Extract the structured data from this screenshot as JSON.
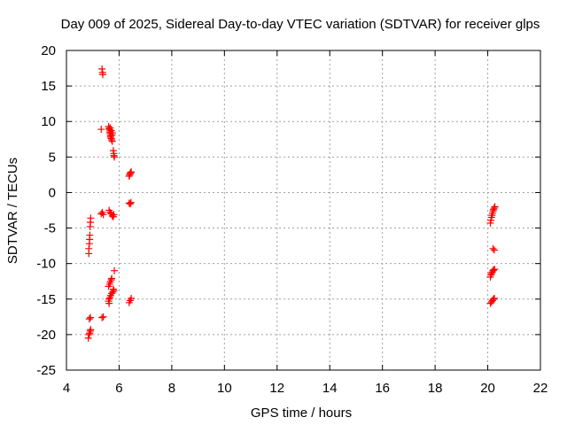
{
  "chart_data": {
    "type": "scatter",
    "title": "Day 009 of 2025, Sidereal Day-to-day VTEC variation (SDTVAR) for receiver glps",
    "xlabel": "GPS time / hours",
    "ylabel": "SDTVAR / TECUs",
    "xlim": [
      4,
      22
    ],
    "ylim": [
      -25,
      20
    ],
    "xticks": [
      "4",
      "6",
      "8",
      "10",
      "12",
      "14",
      "16",
      "18",
      "20",
      "22"
    ],
    "yticks": [
      "20",
      "15",
      "10",
      "5",
      "0",
      "-5",
      "-10",
      "-15",
      "-20",
      "-25"
    ],
    "grid": true,
    "marker": "plus",
    "color": "#ff0000",
    "series": [
      {
        "name": "SDTVAR",
        "points": [
          [
            4.85,
            -8.6
          ],
          [
            4.85,
            -7.9
          ],
          [
            4.87,
            -7.2
          ],
          [
            4.88,
            -6.6
          ],
          [
            4.89,
            -6.0
          ],
          [
            4.9,
            -4.8
          ],
          [
            4.91,
            -4.2
          ],
          [
            4.92,
            -3.6
          ],
          [
            4.83,
            -20.5
          ],
          [
            4.86,
            -20.0
          ],
          [
            4.88,
            -19.8
          ],
          [
            4.9,
            -19.5
          ],
          [
            4.92,
            -19.3
          ],
          [
            4.87,
            -17.8
          ],
          [
            4.91,
            -17.6
          ],
          [
            5.35,
            17.4
          ],
          [
            5.37,
            16.9
          ],
          [
            5.38,
            16.6
          ],
          [
            5.32,
            8.9
          ],
          [
            5.6,
            9.3
          ],
          [
            5.62,
            9.0
          ],
          [
            5.64,
            8.8
          ],
          [
            5.65,
            8.5
          ],
          [
            5.66,
            8.3
          ],
          [
            5.67,
            8.0
          ],
          [
            5.68,
            7.8
          ],
          [
            5.7,
            7.6
          ],
          [
            5.72,
            7.4
          ],
          [
            5.74,
            7.2
          ],
          [
            5.66,
            9.1
          ],
          [
            5.7,
            8.7
          ],
          [
            5.75,
            8.4
          ],
          [
            5.73,
            8.1
          ],
          [
            5.78,
            5.9
          ],
          [
            5.8,
            5.5
          ],
          [
            5.8,
            5.2
          ],
          [
            5.82,
            5.0
          ],
          [
            6.38,
            2.3
          ],
          [
            6.4,
            2.5
          ],
          [
            6.42,
            2.7
          ],
          [
            6.44,
            2.8
          ],
          [
            6.46,
            2.9
          ],
          [
            6.38,
            -1.5
          ],
          [
            6.42,
            -1.6
          ],
          [
            6.45,
            -1.4
          ],
          [
            5.32,
            -3.0
          ],
          [
            5.36,
            -2.8
          ],
          [
            5.4,
            -3.1
          ],
          [
            5.62,
            -2.5
          ],
          [
            5.66,
            -2.8
          ],
          [
            5.7,
            -3.0
          ],
          [
            5.74,
            -3.3
          ],
          [
            5.78,
            -3.4
          ],
          [
            5.8,
            -3.1
          ],
          [
            5.82,
            -11.0
          ],
          [
            5.6,
            -13.2
          ],
          [
            5.64,
            -12.9
          ],
          [
            5.66,
            -12.6
          ],
          [
            5.7,
            -12.3
          ],
          [
            5.72,
            -12.1
          ],
          [
            5.6,
            -15.3
          ],
          [
            5.62,
            -15.0
          ],
          [
            5.65,
            -14.8
          ],
          [
            5.68,
            -14.5
          ],
          [
            5.72,
            -14.2
          ],
          [
            5.76,
            -14.0
          ],
          [
            5.8,
            -13.8
          ],
          [
            5.78,
            -13.6
          ],
          [
            5.62,
            -15.6
          ],
          [
            6.38,
            -15.5
          ],
          [
            6.42,
            -15.2
          ],
          [
            6.46,
            -14.9
          ],
          [
            5.35,
            -17.6
          ],
          [
            5.4,
            -17.5
          ],
          [
            20.1,
            -4.3
          ],
          [
            20.12,
            -3.9
          ],
          [
            20.14,
            -3.5
          ],
          [
            20.16,
            -3.2
          ],
          [
            20.18,
            -2.9
          ],
          [
            20.2,
            -2.6
          ],
          [
            20.22,
            -2.4
          ],
          [
            20.24,
            -2.2
          ],
          [
            20.27,
            -2.0
          ],
          [
            20.2,
            -7.9
          ],
          [
            20.25,
            -8.1
          ],
          [
            20.1,
            -11.9
          ],
          [
            20.12,
            -11.6
          ],
          [
            20.14,
            -11.4
          ],
          [
            20.17,
            -11.2
          ],
          [
            20.2,
            -11.0
          ],
          [
            20.22,
            -10.9
          ],
          [
            20.26,
            -10.8
          ],
          [
            20.1,
            -15.6
          ],
          [
            20.14,
            -15.4
          ],
          [
            20.18,
            -15.2
          ],
          [
            20.22,
            -15.0
          ],
          [
            20.25,
            -14.9
          ]
        ]
      }
    ]
  }
}
